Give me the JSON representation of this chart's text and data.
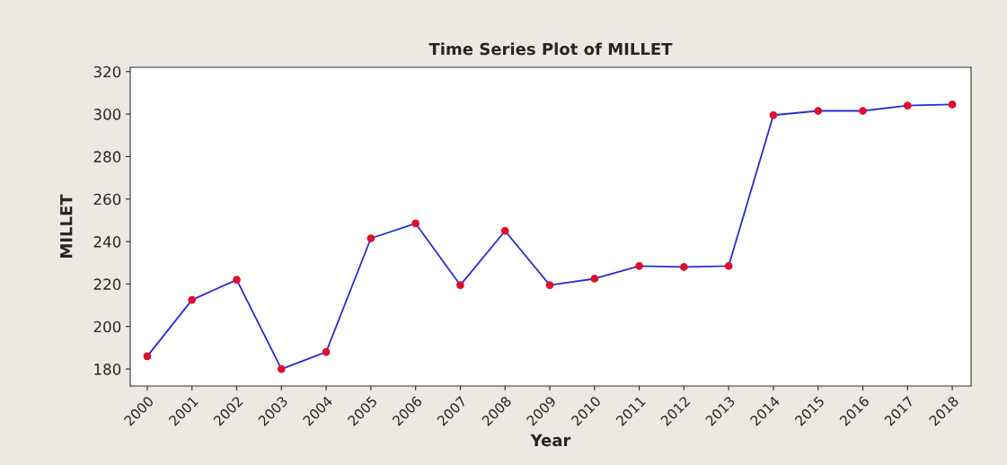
{
  "chart_data": {
    "type": "line",
    "title": "Time Series Plot of MILLET",
    "xlabel": "Year",
    "ylabel": "MILLET",
    "categories": [
      "2000",
      "2001",
      "2002",
      "2003",
      "2004",
      "2005",
      "2006",
      "2007",
      "2008",
      "2009",
      "2010",
      "2011",
      "2012",
      "2013",
      "2014",
      "2015",
      "2016",
      "2017",
      "2018"
    ],
    "series": [
      {
        "color": "#2b2bd6",
        "values": [
          186,
          212.5,
          222,
          180,
          188,
          241.5,
          248.5,
          219.5,
          245,
          219.5,
          222.5,
          228.5,
          228,
          228.5,
          299.5,
          301.5,
          301.5,
          304,
          304.5
        ]
      }
    ],
    "marker": "circle",
    "line_style": "solid",
    "ylim": [
      172,
      322
    ],
    "yticks": [
      180,
      200,
      220,
      240,
      260,
      280,
      300,
      320
    ],
    "grid": false
  }
}
